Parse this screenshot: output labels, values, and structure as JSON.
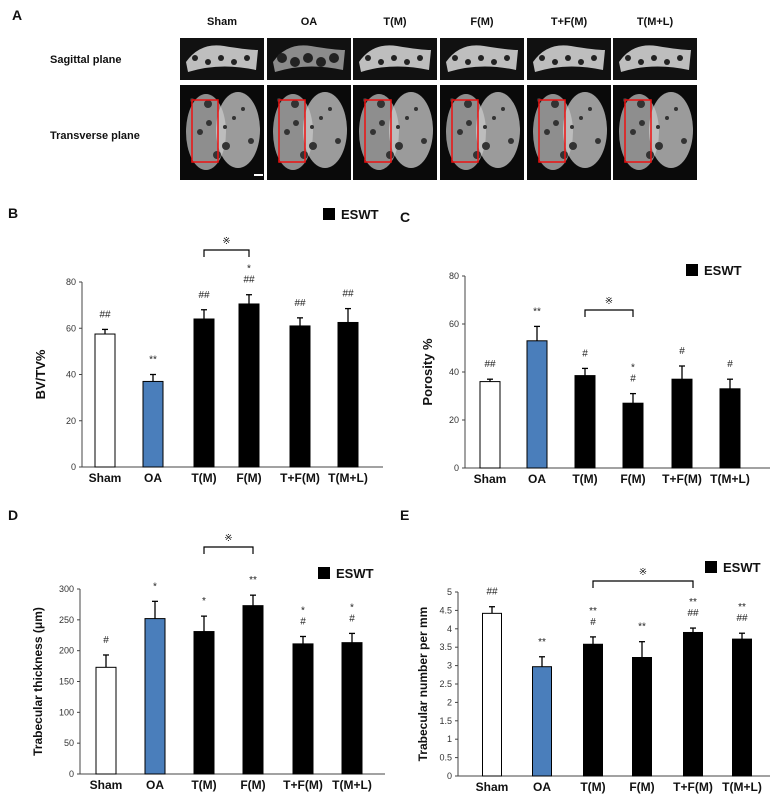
{
  "panel_a": {
    "label": "A",
    "columns": [
      "Sham",
      "OA",
      "T(M)",
      "F(M)",
      "T+F(M)",
      "T(M+L)"
    ],
    "rows": [
      "Sagittal plane",
      "Transverse plane"
    ]
  },
  "chart_data": [
    {
      "panel": "B",
      "type": "bar",
      "title": "",
      "xlabel": "",
      "ylabel": "BV/TV%",
      "categories": [
        "Sham",
        "OA",
        "T(M)",
        "F(M)",
        "T+F(M)",
        "T(M+L)"
      ],
      "values": [
        57.5,
        37,
        64,
        70.5,
        61,
        62.5
      ],
      "errors": [
        2,
        3,
        4,
        4,
        3.5,
        6
      ],
      "colors": [
        "#ffffff",
        "#4a7ebb",
        "#000000",
        "#000000",
        "#000000",
        "#000000"
      ],
      "ylim": [
        0,
        80
      ],
      "yticks": [
        "0",
        "20",
        "40",
        "60",
        "80"
      ],
      "annotations": [
        [
          "##"
        ],
        [
          "**"
        ],
        [
          "##"
        ],
        [
          "*",
          "##"
        ],
        [
          "##"
        ],
        [
          "##"
        ]
      ],
      "bracket": {
        "from": "T(M)",
        "to": "F(M)",
        "symbol": "※"
      },
      "legend": {
        "label": "ESWT",
        "color": "#000000",
        "placement": "top-right"
      },
      "grid": false
    },
    {
      "panel": "C",
      "type": "bar",
      "title": "",
      "xlabel": "",
      "ylabel": "Porosity %",
      "categories": [
        "Sham",
        "OA",
        "T(M)",
        "F(M)",
        "T+F(M)",
        "T(M+L)"
      ],
      "values": [
        36,
        53,
        38.5,
        27,
        37,
        33
      ],
      "errors": [
        1,
        6,
        3,
        4,
        5.5,
        4
      ],
      "colors": [
        "#ffffff",
        "#4a7ebb",
        "#000000",
        "#000000",
        "#000000",
        "#000000"
      ],
      "ylim": [
        0,
        80
      ],
      "yticks": [
        "0",
        "20",
        "40",
        "60",
        "80"
      ],
      "annotations": [
        [
          "##"
        ],
        [
          "**"
        ],
        [
          "#"
        ],
        [
          "*",
          "#"
        ],
        [
          "#"
        ],
        [
          "#"
        ]
      ],
      "bracket": {
        "from": "T(M)",
        "to": "F(M)",
        "symbol": "※"
      },
      "legend": {
        "label": "ESWT",
        "color": "#000000",
        "placement": "top-right"
      },
      "grid": false
    },
    {
      "panel": "D",
      "type": "bar",
      "title": "",
      "xlabel": "",
      "ylabel": "Trabecular thickness (μm)",
      "categories": [
        "Sham",
        "OA",
        "T(M)",
        "F(M)",
        "T+F(M)",
        "T(M+L)"
      ],
      "values": [
        173,
        252,
        231,
        273,
        211,
        213
      ],
      "errors": [
        20,
        28,
        25,
        17,
        12,
        15
      ],
      "colors": [
        "#ffffff",
        "#4a7ebb",
        "#000000",
        "#000000",
        "#000000",
        "#000000"
      ],
      "ylim": [
        0,
        300
      ],
      "yticks": [
        "0",
        "50",
        "100",
        "150",
        "200",
        "250",
        "300"
      ],
      "annotations": [
        [
          "#"
        ],
        [
          "*"
        ],
        [
          "*"
        ],
        [
          "**"
        ],
        [
          "*",
          "#"
        ],
        [
          "*",
          "#"
        ]
      ],
      "bracket": {
        "from": "T(M)",
        "to": "F(M)",
        "symbol": "※"
      },
      "legend": {
        "label": "ESWT",
        "color": "#000000",
        "placement": "top-right"
      },
      "grid": false
    },
    {
      "panel": "E",
      "type": "bar",
      "title": "",
      "xlabel": "",
      "ylabel": "Trabecular number  per mm",
      "categories": [
        "Sham",
        "OA",
        "T(M)",
        "F(M)",
        "T+F(M)",
        "T(M+L)"
      ],
      "values": [
        4.42,
        2.97,
        3.58,
        3.22,
        3.9,
        3.72
      ],
      "errors": [
        0.18,
        0.27,
        0.2,
        0.43,
        0.12,
        0.16
      ],
      "colors": [
        "#ffffff",
        "#4a7ebb",
        "#000000",
        "#000000",
        "#000000",
        "#000000"
      ],
      "ylim": [
        0,
        5
      ],
      "yticks": [
        "0",
        "0.5",
        "1",
        "1.5",
        "2",
        "2.5",
        "3",
        "3.5",
        "4",
        "4.5",
        "5"
      ],
      "annotations": [
        [
          "##"
        ],
        [
          "**"
        ],
        [
          "**",
          "#"
        ],
        [
          "**"
        ],
        [
          "**",
          "##"
        ],
        [
          "**",
          "##"
        ]
      ],
      "bracket": {
        "from": "T(M)",
        "to": "T+F(M)",
        "symbol": "※"
      },
      "legend": {
        "label": "ESWT",
        "color": "#000000",
        "placement": "top-right"
      },
      "grid": false
    }
  ]
}
